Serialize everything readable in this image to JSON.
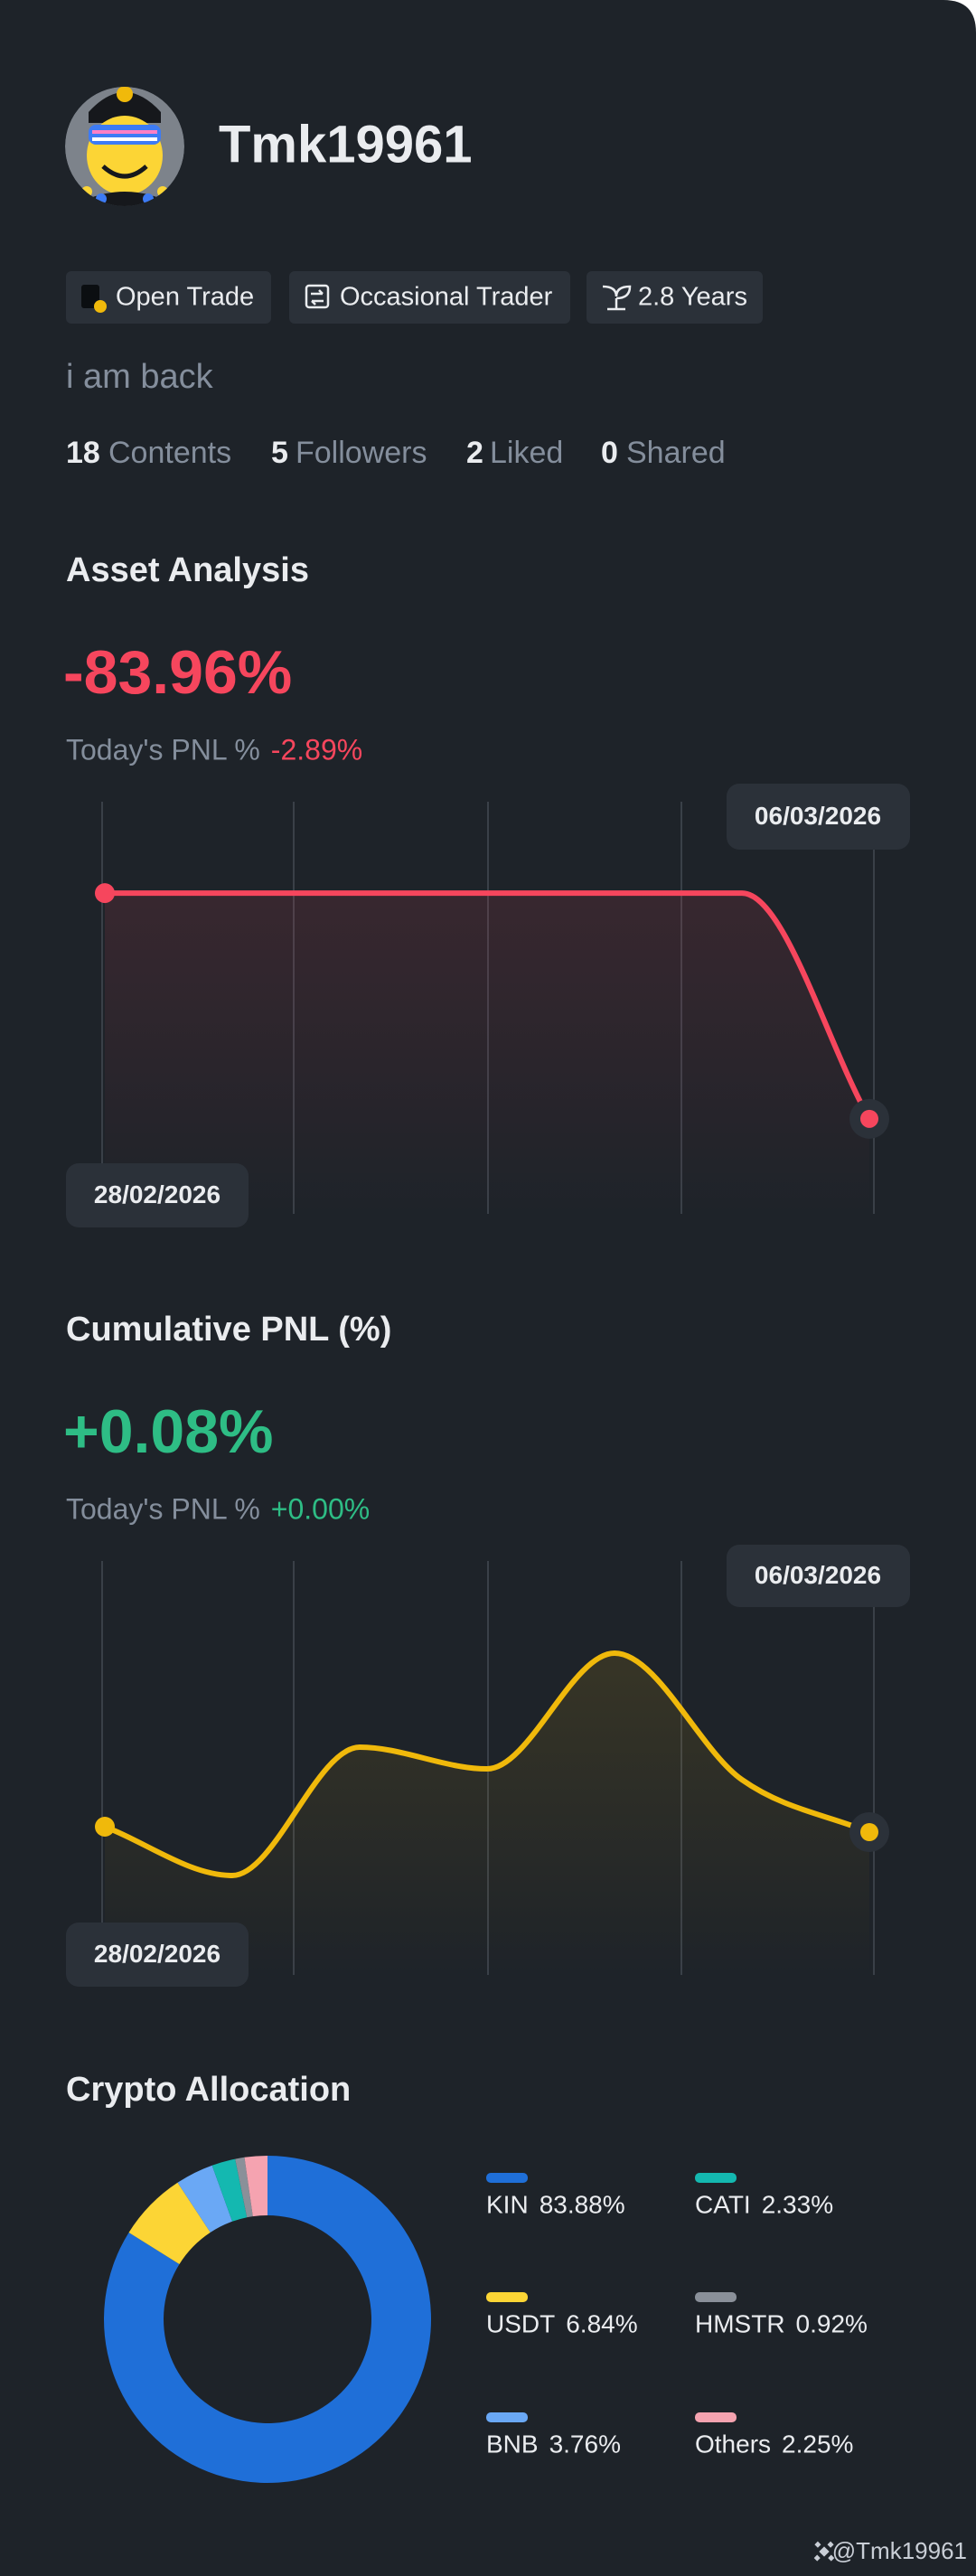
{
  "profile": {
    "username": "Tmk19961",
    "tags": [
      "Open Trade",
      "Occasional Trader",
      "2.8 Years"
    ],
    "bio": "i am back",
    "stats": [
      {
        "count": 18,
        "label": "Contents"
      },
      {
        "count": 5,
        "label": "Followers"
      },
      {
        "count": 2,
        "label": "Liked"
      },
      {
        "count": 0,
        "label": "Shared"
      }
    ]
  },
  "chart_data": [
    {
      "type": "line",
      "title": "Asset Analysis",
      "headline": "-83.96%",
      "subtitle": "Today's PNL %",
      "today_pnl": "-2.89%",
      "value_color": "#f6465d",
      "categories": [
        "28/02/2026",
        null,
        null,
        null,
        null,
        null,
        "06/03/2026"
      ],
      "values": [
        -81.07,
        -81.07,
        -81.07,
        -81.07,
        -81.07,
        -81.07,
        -83.96
      ],
      "ylim": [
        -85.2,
        -79.9
      ],
      "color": "#f6465d"
    },
    {
      "type": "line",
      "title": "Cumulative PNL (%)",
      "headline": "+0.08%",
      "subtitle": "Today's PNL %",
      "today_pnl": "+0.00%",
      "value_color": "#2ebd85",
      "categories": [
        "28/02/2026",
        null,
        null,
        null,
        null,
        null,
        "06/03/2026"
      ],
      "values": [
        0.083,
        0.056,
        0.127,
        0.115,
        0.179,
        0.109,
        0.08
      ],
      "ylim": [
        0,
        0.23
      ],
      "color": "#f0b90b"
    },
    {
      "type": "pie",
      "title": "Crypto Allocation",
      "categories": [
        "KIN",
        "USDT",
        "BNB",
        "CATI",
        "HMSTR",
        "Others"
      ],
      "values": [
        83.88,
        6.84,
        3.76,
        2.33,
        0.92,
        2.25
      ],
      "value_labels": [
        "83.88%",
        "6.84%",
        "3.76%",
        "2.33%",
        "0.92%",
        "2.25%"
      ],
      "colors": [
        "#1f6fd8",
        "#fcd535",
        "#6aa8f5",
        "#14b8b0",
        "#8a9099",
        "#f5a3b0"
      ]
    }
  ],
  "footer": "@Tmk19961"
}
